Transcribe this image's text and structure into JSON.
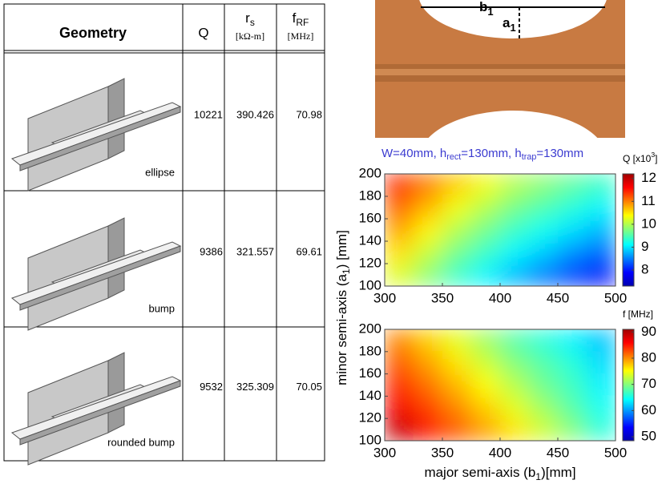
{
  "table": {
    "header": {
      "geometry": "Geometry",
      "q": "Q",
      "rs": [
        "r",
        "s",
        "[kΩ-m]"
      ],
      "frf": [
        "f",
        "RF",
        "[MHz]"
      ]
    },
    "rows": [
      [
        "ellipse",
        10221,
        390.426,
        70.98
      ],
      [
        "bump",
        9386,
        321.557,
        69.61
      ],
      [
        "rounded bump",
        9532,
        325.309,
        70.05
      ]
    ]
  },
  "render": {
    "b_label": [
      "b",
      "1"
    ],
    "a_label": [
      "a",
      "1"
    ]
  },
  "chart_data": [
    {
      "type": "heatmap",
      "title_parts": [
        "W=40mm, h",
        "rect",
        "=130mm, h",
        "trap",
        "=130mm"
      ],
      "ylabel_parts": [
        "minor semi-axis (a",
        "1",
        ") [mm]"
      ],
      "colorbar_label": [
        "Q [x10",
        "3",
        "]"
      ],
      "x": [
        312.5,
        337.5,
        362.5,
        387.5,
        412.5,
        437.5,
        462.5,
        487.5
      ],
      "y": [
        190,
        170,
        150,
        130,
        110
      ],
      "values": [
        [
          11.4,
          11.0,
          10.6,
          10.3,
          10.0,
          9.8,
          9.6,
          9.4
        ],
        [
          11.1,
          10.7,
          10.3,
          10.0,
          9.7,
          9.5,
          9.3,
          9.1
        ],
        [
          10.8,
          10.4,
          10.0,
          9.7,
          9.4,
          9.2,
          9.0,
          8.8
        ],
        [
          10.5,
          10.1,
          9.7,
          9.4,
          9.1,
          8.9,
          8.6,
          8.4
        ],
        [
          10.2,
          9.8,
          9.4,
          9.1,
          8.8,
          8.5,
          8.2,
          7.9
        ]
      ],
      "xlim": [
        300,
        500
      ],
      "ylim": [
        100,
        200
      ],
      "xticks": [
        300,
        350,
        400,
        450,
        500
      ],
      "yticks": [
        100,
        120,
        140,
        160,
        180,
        200
      ],
      "clim": [
        7.3,
        12.2
      ],
      "cticks": [
        8,
        9,
        10,
        11,
        12
      ],
      "colormap": "jet"
    },
    {
      "type": "heatmap",
      "xlabel_parts": [
        "major semi-axis (b",
        "1",
        ")[mm]"
      ],
      "colorbar_label": [
        "f [MHz]"
      ],
      "x": [
        312.5,
        337.5,
        362.5,
        387.5,
        412.5,
        437.5,
        462.5,
        487.5
      ],
      "y": [
        190,
        170,
        150,
        130,
        110
      ],
      "values": [
        [
          80,
          77,
          74,
          71,
          68,
          66,
          64,
          62
        ],
        [
          82,
          79,
          76,
          73,
          70,
          68,
          66,
          63
        ],
        [
          84,
          81,
          78,
          75,
          72,
          69,
          67,
          64
        ],
        [
          86,
          83,
          80,
          77,
          74,
          71,
          68,
          65
        ],
        [
          88,
          85,
          82,
          79,
          76,
          73,
          70,
          66
        ]
      ],
      "xlim": [
        300,
        500
      ],
      "ylim": [
        100,
        200
      ],
      "xticks": [
        300,
        350,
        400,
        450,
        500
      ],
      "yticks": [
        100,
        120,
        140,
        160,
        180,
        200
      ],
      "clim": [
        48.5,
        91
      ],
      "cticks": [
        50,
        60,
        70,
        80,
        90
      ],
      "colormap": "jet"
    }
  ]
}
